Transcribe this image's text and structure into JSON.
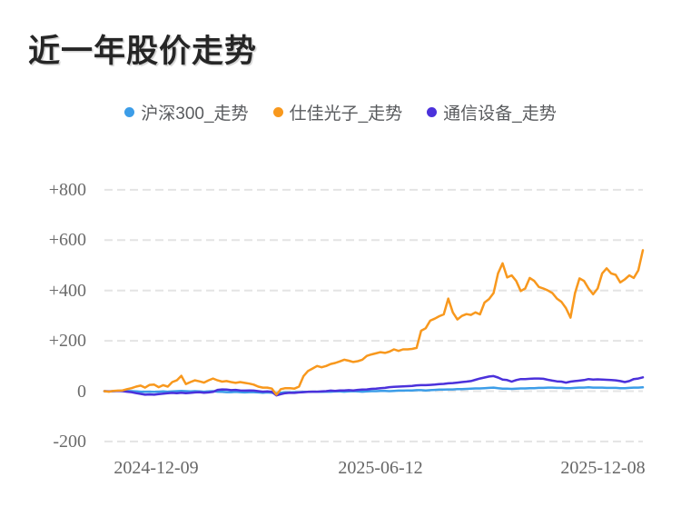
{
  "header": {
    "title": "近一年股价走势"
  },
  "chart_data": {
    "type": "line",
    "title": "近一年股价走势",
    "xlabel": "",
    "ylabel": "",
    "x_axis": {
      "tick_labels": [
        "2024-12-09",
        "2025-06-12",
        "2025-12-08"
      ]
    },
    "y_axis": {
      "tick_labels": [
        "+800",
        "+600",
        "+400",
        "+200",
        "0",
        "-200"
      ],
      "tick_values": [
        800,
        600,
        400,
        200,
        0,
        -200
      ],
      "min": -200,
      "max": 800
    },
    "grid": {
      "style": "dashed",
      "color": "#e4e4e4"
    },
    "legend_position": "top-center",
    "series": [
      {
        "name": "沪深300_走势",
        "color": "#3c9de8",
        "values": [
          0,
          -1,
          0,
          1,
          2,
          1,
          0,
          -1,
          -2,
          -3,
          -2,
          -3,
          -2,
          -1,
          -2,
          -1,
          0,
          1,
          0,
          -1,
          0,
          -1,
          -2,
          -1,
          0,
          -2,
          -3,
          -4,
          -4,
          -3,
          -4,
          -5,
          -4,
          -4,
          -5,
          -6,
          -5,
          -6,
          -8,
          -6,
          -5,
          -5,
          -4,
          -4,
          -3,
          -3,
          -2,
          -2,
          -3,
          -2,
          -2,
          -1,
          -1,
          -2,
          -1,
          0,
          -1,
          -2,
          -1,
          0,
          0,
          1,
          1,
          0,
          1,
          2,
          2,
          3,
          3,
          4,
          4,
          3,
          4,
          5,
          6,
          6,
          7,
          7,
          8,
          8,
          9,
          10,
          11,
          11,
          12,
          13,
          14,
          12,
          10,
          10,
          9,
          10,
          11,
          11,
          12,
          12,
          13,
          13,
          14,
          14,
          13,
          13,
          12,
          12,
          13,
          14,
          14,
          15,
          14,
          14,
          14,
          13,
          13,
          13,
          12,
          12,
          13,
          14,
          14,
          15
        ]
      },
      {
        "name": "仕佳光子_走势",
        "color": "#f8981d",
        "values": [
          0,
          -2,
          1,
          2,
          3,
          8,
          12,
          18,
          22,
          14,
          25,
          26,
          16,
          24,
          18,
          36,
          43,
          61,
          28,
          36,
          43,
          39,
          34,
          43,
          50,
          43,
          38,
          40,
          36,
          33,
          36,
          33,
          30,
          26,
          18,
          14,
          14,
          10,
          -14,
          8,
          12,
          12,
          10,
          18,
          60,
          80,
          90,
          100,
          95,
          100,
          108,
          112,
          118,
          125,
          121,
          116,
          119,
          125,
          140,
          146,
          150,
          155,
          152,
          157,
          166,
          160,
          166,
          166,
          168,
          172,
          240,
          250,
          280,
          288,
          298,
          305,
          368,
          313,
          285,
          299,
          306,
          303,
          313,
          305,
          352,
          366,
          390,
          468,
          508,
          452,
          460,
          438,
          398,
          408,
          450,
          438,
          414,
          408,
          400,
          390,
          368,
          355,
          330,
          292,
          390,
          448,
          438,
          408,
          385,
          408,
          468,
          488,
          468,
          462,
          432,
          444,
          460,
          450,
          480,
          560
        ]
      },
      {
        "name": "通信设备_走势",
        "color": "#4b31db",
        "values": [
          0,
          -1,
          0,
          1,
          0,
          -2,
          -4,
          -8,
          -11,
          -14,
          -13,
          -14,
          -12,
          -10,
          -8,
          -7,
          -8,
          -6,
          -8,
          -7,
          -5,
          -4,
          -6,
          -5,
          -3,
          5,
          7,
          6,
          4,
          5,
          3,
          2,
          3,
          2,
          0,
          -2,
          -1,
          -3,
          -17,
          -12,
          -8,
          -6,
          -7,
          -5,
          -4,
          -3,
          -2,
          -2,
          -1,
          0,
          2,
          1,
          3,
          3,
          4,
          3,
          5,
          6,
          7,
          9,
          10,
          12,
          13,
          16,
          17,
          18,
          19,
          20,
          21,
          23,
          24,
          24,
          25,
          26,
          28,
          29,
          31,
          32,
          34,
          36,
          38,
          40,
          45,
          50,
          54,
          58,
          60,
          54,
          46,
          44,
          38,
          44,
          48,
          48,
          49,
          50,
          50,
          49,
          45,
          42,
          39,
          38,
          34,
          38,
          40,
          42,
          44,
          48,
          46,
          47,
          46,
          45,
          44,
          43,
          40,
          36,
          40,
          48,
          50,
          55
        ]
      }
    ]
  }
}
